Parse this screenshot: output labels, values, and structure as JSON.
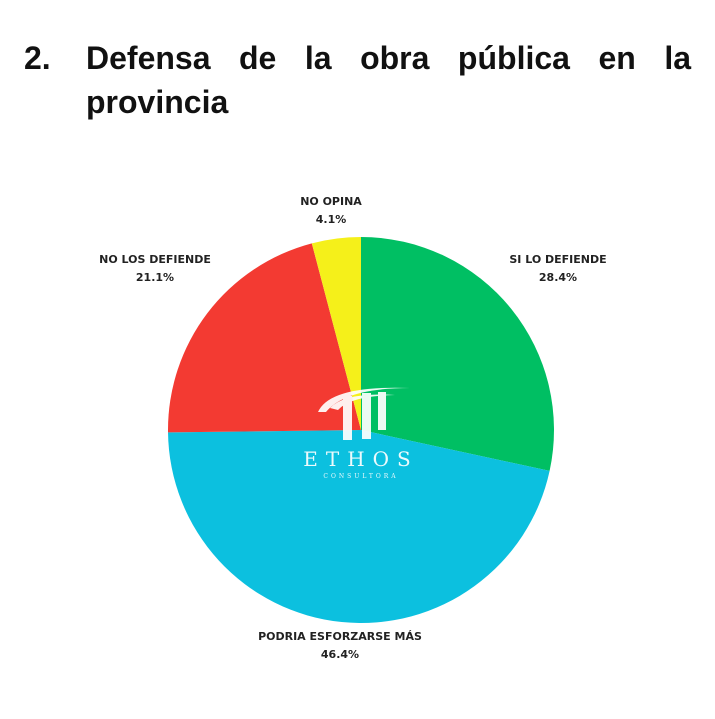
{
  "header": {
    "number": "2.",
    "title": "Defensa de la obra pública en la provincia"
  },
  "logo": {
    "text": "ETHOS",
    "subtext": "CONSULTORA"
  },
  "chart_data": {
    "type": "pie",
    "title": "",
    "categories": [
      "SI LO DEFIENDE",
      "PODRIA ESFORZARSE MÁS",
      "NO LOS DEFIENDE",
      "NO OPINA"
    ],
    "values": [
      28.4,
      46.4,
      21.1,
      4.1
    ],
    "value_labels": [
      "28.4%",
      "46.4%",
      "21.1%",
      "4.1%"
    ],
    "colors": [
      "#00bf63",
      "#0cc0df",
      "#f33a32",
      "#f5f01a"
    ],
    "start": "12 o'clock, clockwise",
    "legend": "none (labels beside slices)"
  }
}
